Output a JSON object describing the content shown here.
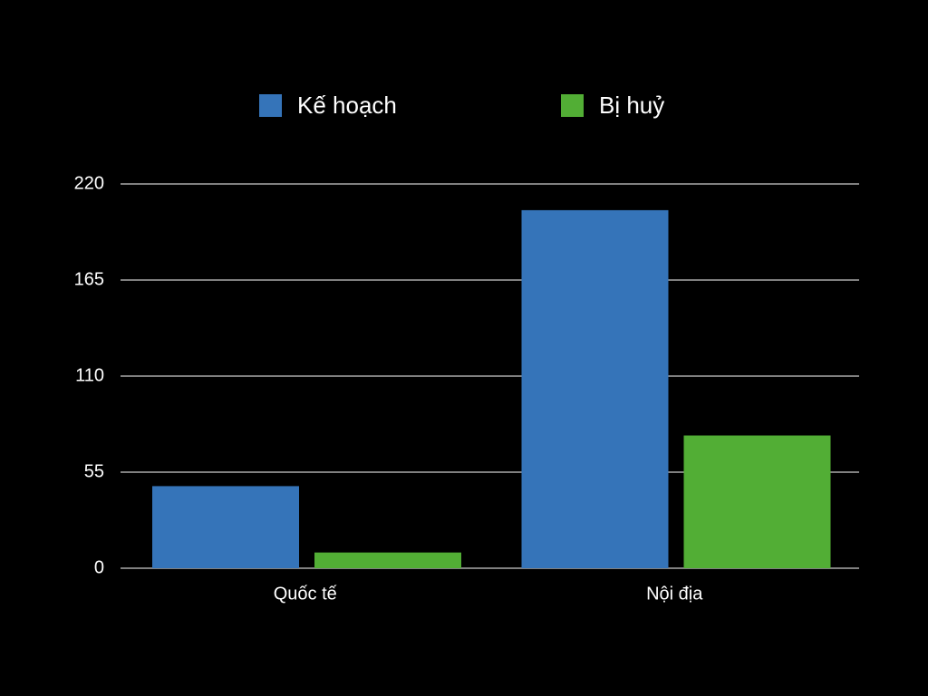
{
  "chart_data": {
    "type": "bar",
    "categories": [
      "Quốc tế",
      "Nội địa"
    ],
    "series": [
      {
        "name": "Kế hoạch",
        "color": "#3574b9",
        "values": [
          47,
          205
        ]
      },
      {
        "name": "Bị huỷ",
        "color": "#52ae35",
        "values": [
          9,
          76
        ]
      }
    ],
    "ylim": [
      0,
      220
    ],
    "yticks": [
      0,
      55,
      110,
      165,
      220
    ],
    "grid": true,
    "legend": "top"
  }
}
